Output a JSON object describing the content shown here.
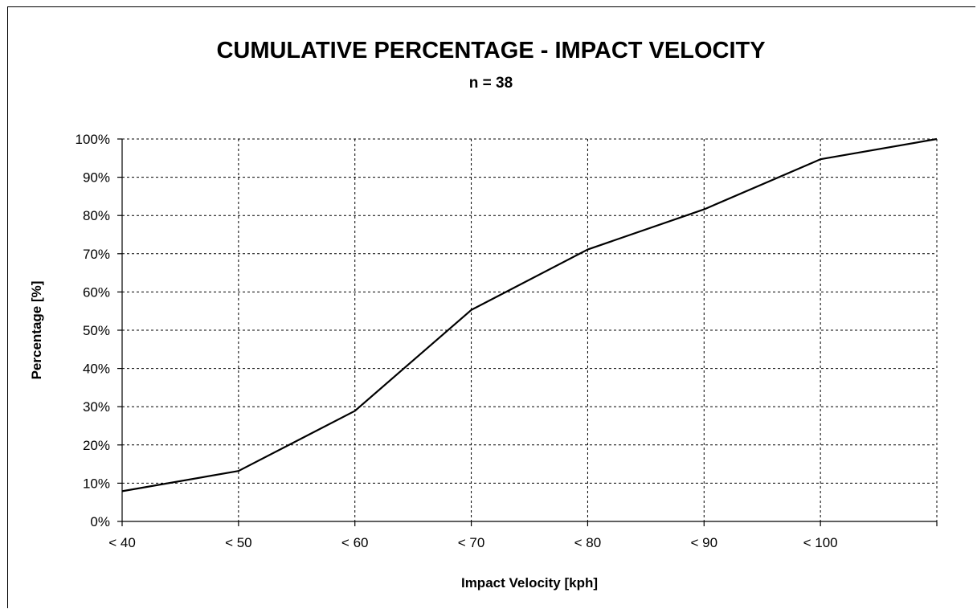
{
  "chart_data": {
    "type": "line",
    "title": "CUMULATIVE PERCENTAGE - IMPACT VELOCITY",
    "subtitle": "n = 38",
    "xlabel": "Impact Velocity [kph]",
    "ylabel": "Percentage [%]",
    "categories": [
      "< 40",
      "< 50",
      "< 60",
      "< 70",
      "< 80",
      "< 90",
      "< 100",
      ""
    ],
    "ylim": [
      0,
      100
    ],
    "yticks": [
      "0%",
      "10%",
      "20%",
      "30%",
      "40%",
      "50%",
      "60%",
      "70%",
      "80%",
      "90%",
      "100%"
    ],
    "grid": true,
    "legend": "none",
    "series": [
      {
        "values": [
          7.9,
          13.2,
          28.9,
          55.3,
          71.1,
          81.6,
          94.7,
          100
        ]
      }
    ],
    "colors": {
      "line": "#000000",
      "grid": "#000000",
      "background": "#ffffff"
    }
  }
}
